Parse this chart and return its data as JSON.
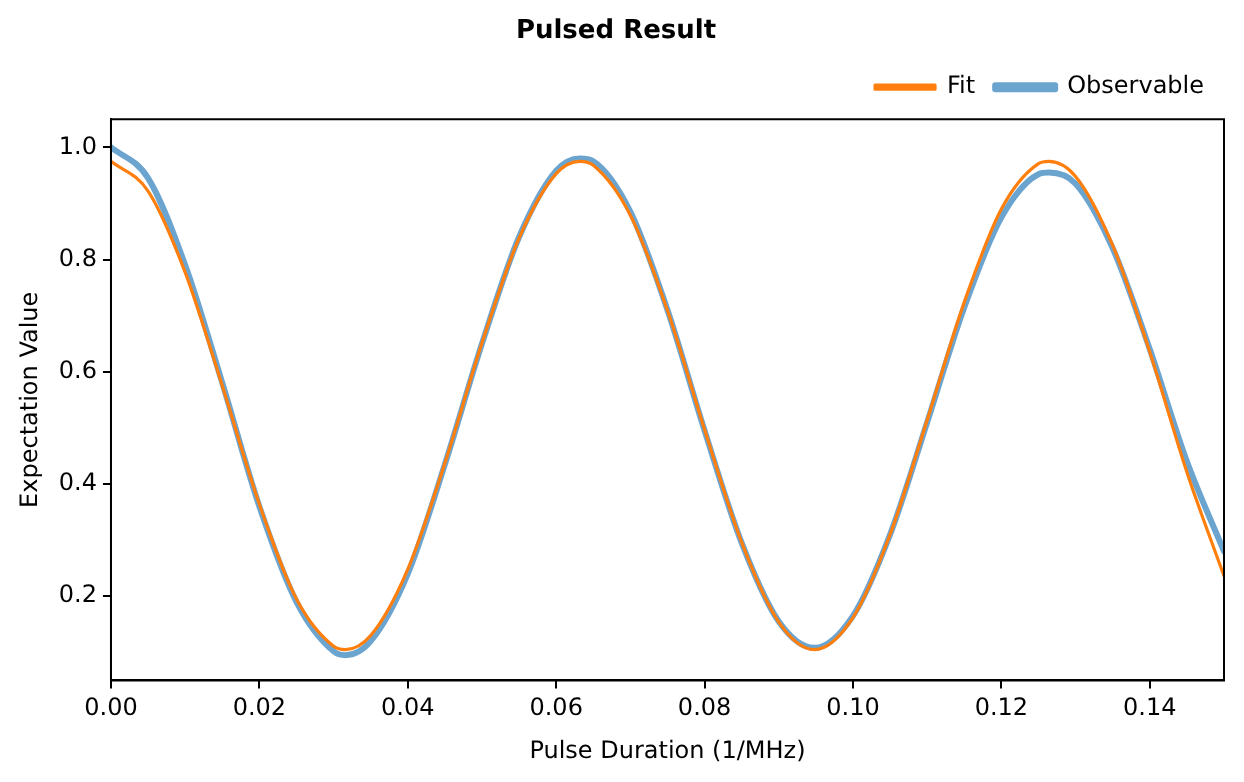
{
  "chart_data": {
    "type": "line",
    "title": "Pulsed Result",
    "xlabel": "Pulse Duration (1/MHz)",
    "ylabel": "Expectation Value",
    "xlim": [
      0,
      0.15
    ],
    "xticks": [
      {
        "value": 0,
        "label": "0.00"
      },
      {
        "value": 0.02,
        "label": "0.02"
      },
      {
        "value": 0.04,
        "label": "0.04"
      },
      {
        "value": 0.06,
        "label": "0.06"
      },
      {
        "value": 0.08,
        "label": "0.08"
      },
      {
        "value": 0.1,
        "label": "0.10"
      },
      {
        "value": 0.12,
        "label": "0.12"
      },
      {
        "value": 0.14,
        "label": "0.14"
      }
    ],
    "ylim": [
      0.05,
      1.05
    ],
    "yticks": [
      0.2,
      0.4,
      0.6,
      0.8,
      {
        "value": 1,
        "label": "1.0"
      }
    ],
    "grid": false,
    "legend": "top right",
    "marker": "none",
    "line_style": "solid",
    "series": [
      {
        "name": "Observable",
        "color": "#6ca4d0",
        "x": [
          0,
          0.005,
          0.01,
          0.015,
          0.02,
          0.025,
          0.03,
          0.0316,
          0.035,
          0.04,
          0.045,
          0.05,
          0.055,
          0.06,
          0.0632,
          0.065,
          0.07,
          0.075,
          0.08,
          0.085,
          0.09,
          0.0948,
          0.1,
          0.105,
          0.11,
          0.115,
          0.12,
          0.125,
          0.1264,
          0.13,
          0.135,
          0.14,
          0.145,
          0.15
        ],
        "values": [
          1.0,
          0.945,
          0.79,
          0.58,
          0.36,
          0.19,
          0.102,
          0.095,
          0.12,
          0.24,
          0.435,
          0.65,
          0.84,
          0.958,
          0.98,
          0.975,
          0.885,
          0.71,
          0.495,
          0.295,
          0.155,
          0.108,
          0.165,
          0.31,
          0.51,
          0.715,
          0.875,
          0.952,
          0.955,
          0.935,
          0.82,
          0.64,
          0.44,
          0.28
        ]
      },
      {
        "name": "Fit",
        "color": "#ff7f0e",
        "x": [
          0,
          0.005,
          0.01,
          0.015,
          0.02,
          0.025,
          0.03,
          0.0316,
          0.035,
          0.04,
          0.045,
          0.05,
          0.055,
          0.06,
          0.0632,
          0.065,
          0.07,
          0.075,
          0.08,
          0.085,
          0.09,
          0.0948,
          0.1,
          0.105,
          0.11,
          0.115,
          0.12,
          0.125,
          0.1264,
          0.13,
          0.135,
          0.14,
          0.145,
          0.15
        ],
        "values": [
          0.975,
          0.922,
          0.777,
          0.575,
          0.364,
          0.195,
          0.111,
          0.105,
          0.13,
          0.248,
          0.437,
          0.651,
          0.838,
          0.953,
          0.975,
          0.968,
          0.879,
          0.709,
          0.497,
          0.296,
          0.154,
          0.105,
          0.162,
          0.31,
          0.514,
          0.724,
          0.89,
          0.971,
          0.975,
          0.948,
          0.825,
          0.635,
          0.421,
          0.236
        ]
      }
    ]
  }
}
